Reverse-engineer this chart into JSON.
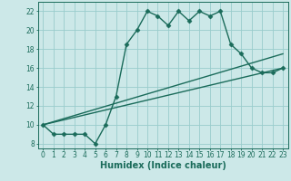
{
  "title": "",
  "xlabel": "Humidex (Indice chaleur)",
  "xlim": [
    -0.5,
    23.5
  ],
  "ylim": [
    7.5,
    23.0
  ],
  "yticks": [
    8,
    10,
    12,
    14,
    16,
    18,
    20,
    22
  ],
  "xticks": [
    0,
    1,
    2,
    3,
    4,
    5,
    6,
    7,
    8,
    9,
    10,
    11,
    12,
    13,
    14,
    15,
    16,
    17,
    18,
    19,
    20,
    21,
    22,
    23
  ],
  "bg_color": "#cce8e8",
  "grid_color": "#99cccc",
  "line_color": "#1a6b5a",
  "main_x": [
    0,
    1,
    2,
    3,
    4,
    5,
    6,
    7,
    8,
    9,
    10,
    11,
    12,
    13,
    14,
    15,
    16,
    17,
    18,
    19,
    20,
    21,
    22,
    23
  ],
  "main_y": [
    10,
    9,
    9,
    9,
    9,
    8,
    10,
    13,
    18.5,
    20,
    22,
    21.5,
    20.5,
    22,
    21,
    22,
    21.5,
    22,
    18.5,
    17.5,
    16,
    15.5,
    15.5,
    16
  ],
  "line2_x": [
    0,
    23
  ],
  "line2_y": [
    10,
    17.5
  ],
  "line3_x": [
    0,
    23
  ],
  "line3_y": [
    10,
    16
  ],
  "marker_style": "D",
  "marker_size": 2.5,
  "line_width": 1.0,
  "tick_fontsize": 5.5,
  "xlabel_fontsize": 7.0
}
